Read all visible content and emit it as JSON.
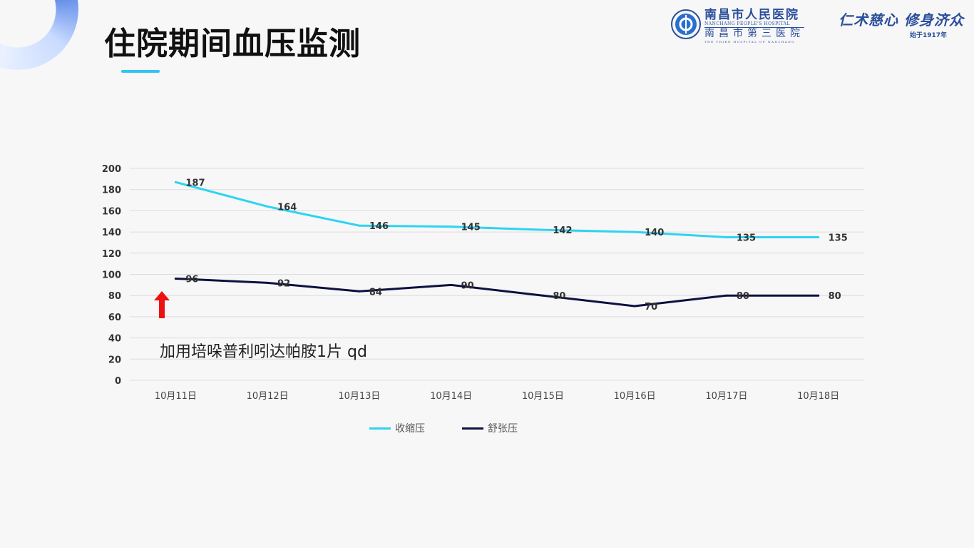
{
  "page": {
    "title": "住院期间血压监测"
  },
  "header": {
    "hospital_name": "南昌市人民医院",
    "hospital_name_en": "NANCHANG PEOPLE'S HOSPITAL",
    "hospital_alt_name": "南昌市第三医院",
    "hospital_alt_name_en": "THE THIRD HOSPITAL OF NANCHANG",
    "motto": "仁术慈心 修身济众",
    "since": "始于1917年"
  },
  "annotation": "加用培哚普利吲达帕胺1片 qd",
  "colors": {
    "systolic": "#2dd4f0",
    "diastolic": "#0e1140",
    "gridline": "#dcdcdc",
    "arrow": "#ee1111",
    "accent": "#2fc4f2"
  },
  "chart_data": {
    "type": "line",
    "title": "",
    "xlabel": "",
    "ylabel": "",
    "ylim": [
      0,
      200
    ],
    "yticks": [
      0,
      20,
      40,
      60,
      80,
      100,
      120,
      140,
      160,
      180,
      200
    ],
    "grid": true,
    "legend_position": "bottom-center",
    "categories": [
      "10月11日",
      "10月12日",
      "10月13日",
      "10月14日",
      "10月15日",
      "10月16日",
      "10月17日",
      "10月18日"
    ],
    "series": [
      {
        "name": "收缩压",
        "values": [
          187,
          164,
          146,
          145,
          142,
          140,
          135,
          135
        ]
      },
      {
        "name": "舒张压",
        "values": [
          96,
          92,
          84,
          90,
          80,
          70,
          80,
          80
        ]
      }
    ]
  }
}
